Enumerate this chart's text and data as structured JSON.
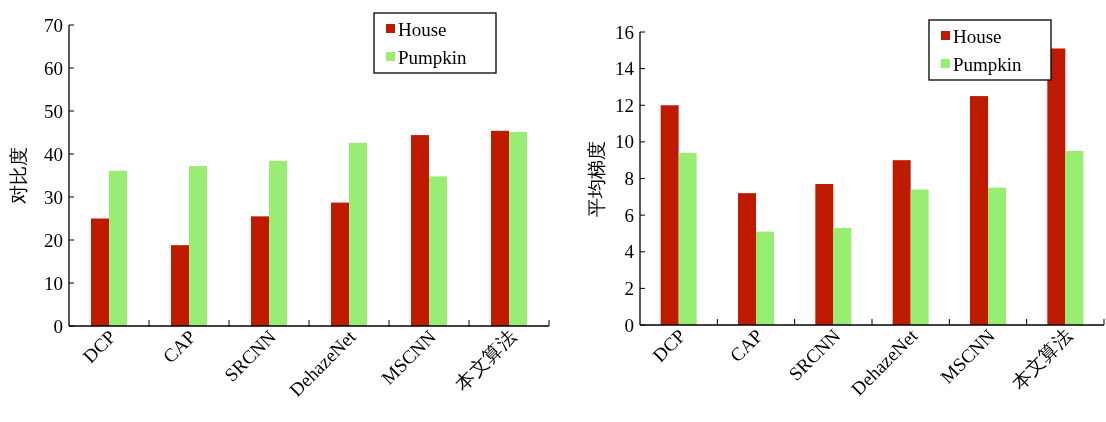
{
  "chart_data": [
    {
      "type": "bar",
      "ylabel": "对比度",
      "categories": [
        "DCP",
        "CAP",
        "SRCNN",
        "DehazeNet",
        "MSCNN",
        "本文算法"
      ],
      "ylim": [
        0,
        70
      ],
      "yticks": [
        0,
        10,
        20,
        30,
        40,
        50,
        60,
        70
      ],
      "legend": "top right",
      "series": [
        {
          "name": "House",
          "color": "#be1a00",
          "values": [
            25.0,
            18.8,
            25.5,
            28.7,
            44.4,
            45.4
          ]
        },
        {
          "name": "Pumpkin",
          "color": "#98ed73",
          "values": [
            36.1,
            37.2,
            38.4,
            42.6,
            34.8,
            45.1
          ]
        }
      ]
    },
    {
      "type": "bar",
      "ylabel": "平均梯度",
      "categories": [
        "DCP",
        "CAP",
        "SRCNN",
        "DehazeNet",
        "MSCNN",
        "本文算法"
      ],
      "ylim": [
        0,
        16
      ],
      "yticks": [
        0,
        2,
        4,
        6,
        8,
        10,
        12,
        14,
        16
      ],
      "legend": "top right",
      "series": [
        {
          "name": "House",
          "color": "#be1a00",
          "values": [
            12.0,
            7.2,
            7.7,
            9.0,
            12.5,
            15.1
          ]
        },
        {
          "name": "Pumpkin",
          "color": "#98ed73",
          "values": [
            9.4,
            5.1,
            5.3,
            7.4,
            7.5,
            9.5
          ]
        }
      ]
    }
  ]
}
